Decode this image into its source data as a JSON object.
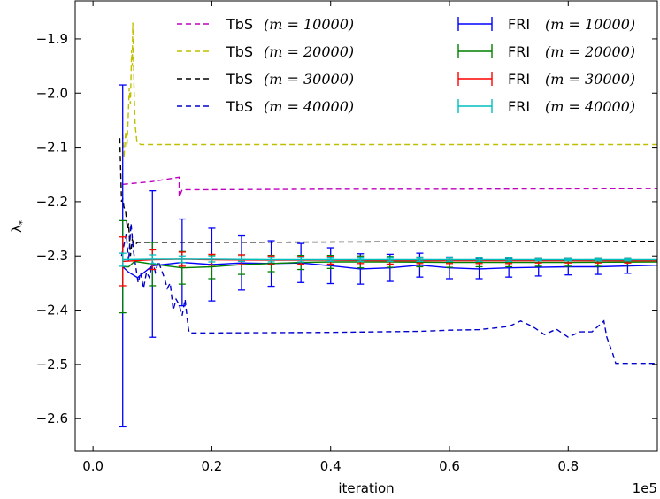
{
  "chart_data": {
    "type": "line",
    "xlabel": "iteration",
    "ylabel": "λ",
    "ylabel_sub": "*",
    "x_offset_text": "1e5",
    "xlim": [
      -0.03,
      0.95
    ],
    "ylim": [
      -2.66,
      -1.83
    ],
    "xticks": [
      0.0,
      0.2,
      0.4,
      0.6,
      0.8
    ],
    "xtick_labels": [
      "0.0",
      "0.2",
      "0.4",
      "0.6",
      "0.8"
    ],
    "yticks": [
      -2.6,
      -2.5,
      -2.4,
      -2.3,
      -2.2,
      -2.1,
      -2.0,
      -1.9
    ],
    "ytick_labels": [
      "−2.6",
      "−2.5",
      "−2.4",
      "−2.3",
      "−2.2",
      "−2.1",
      "−2.0",
      "−1.9"
    ],
    "grid": false,
    "legend_position": "top-right",
    "series": [
      {
        "name": "TbS (m = 10000)",
        "label_text": "TbS",
        "label_math": "(m = 10000)",
        "style": "dashed",
        "color": "#bf00bf",
        "points": [
          [
            0.05,
            -2.168
          ],
          [
            0.1,
            -2.163
          ],
          [
            0.145,
            -2.155
          ],
          [
            0.145,
            -2.192
          ],
          [
            0.15,
            -2.178
          ],
          [
            0.2,
            -2.178
          ],
          [
            0.4,
            -2.177
          ],
          [
            0.6,
            -2.177
          ],
          [
            0.95,
            -2.176
          ]
        ]
      },
      {
        "name": "TbS (m = 20000)",
        "label_text": "TbS",
        "label_math": "(m = 20000)",
        "style": "dashed",
        "color": "#bfbf00",
        "points": [
          [
            0.05,
            -2.075
          ],
          [
            0.052,
            -2.12
          ],
          [
            0.055,
            -2.07
          ],
          [
            0.057,
            -2.1
          ],
          [
            0.059,
            -2.05
          ],
          [
            0.061,
            -1.99
          ],
          [
            0.063,
            -2.02
          ],
          [
            0.065,
            -1.92
          ],
          [
            0.066,
            -1.95
          ],
          [
            0.067,
            -1.87
          ],
          [
            0.069,
            -1.99
          ],
          [
            0.071,
            -2.06
          ],
          [
            0.074,
            -2.09
          ],
          [
            0.08,
            -2.095
          ],
          [
            0.2,
            -2.095
          ],
          [
            0.5,
            -2.095
          ],
          [
            0.95,
            -2.095
          ]
        ]
      },
      {
        "name": "TbS (m = 30000)",
        "label_text": "TbS",
        "label_math": "(m = 30000)",
        "style": "dashed",
        "color": "#000000",
        "points": [
          [
            0.045,
            -2.083
          ],
          [
            0.048,
            -2.2
          ],
          [
            0.05,
            -2.195
          ],
          [
            0.052,
            -2.21
          ],
          [
            0.055,
            -2.22
          ],
          [
            0.058,
            -2.25
          ],
          [
            0.06,
            -2.24
          ],
          [
            0.063,
            -2.3
          ],
          [
            0.066,
            -2.27
          ],
          [
            0.07,
            -2.28
          ],
          [
            0.075,
            -2.275
          ],
          [
            0.1,
            -2.275
          ],
          [
            0.2,
            -2.275
          ],
          [
            0.5,
            -2.274
          ],
          [
            0.95,
            -2.273
          ]
        ]
      },
      {
        "name": "TbS (m = 40000)",
        "label_text": "TbS",
        "label_math": "(m = 40000)",
        "style": "dashed",
        "color": "#0000cc",
        "points": [
          [
            0.048,
            -2.3
          ],
          [
            0.052,
            -2.28
          ],
          [
            0.056,
            -2.26
          ],
          [
            0.06,
            -2.31
          ],
          [
            0.064,
            -2.24
          ],
          [
            0.068,
            -2.29
          ],
          [
            0.072,
            -2.32
          ],
          [
            0.076,
            -2.35
          ],
          [
            0.08,
            -2.33
          ],
          [
            0.085,
            -2.36
          ],
          [
            0.09,
            -2.33
          ],
          [
            0.095,
            -2.34
          ],
          [
            0.1,
            -2.31
          ],
          [
            0.105,
            -2.33
          ],
          [
            0.11,
            -2.31
          ],
          [
            0.12,
            -2.34
          ],
          [
            0.125,
            -2.36
          ],
          [
            0.13,
            -2.35
          ],
          [
            0.135,
            -2.4
          ],
          [
            0.14,
            -2.38
          ],
          [
            0.145,
            -2.39
          ],
          [
            0.15,
            -2.41
          ],
          [
            0.155,
            -2.38
          ],
          [
            0.16,
            -2.43
          ],
          [
            0.162,
            -2.442
          ],
          [
            0.2,
            -2.442
          ],
          [
            0.4,
            -2.441
          ],
          [
            0.55,
            -2.439
          ],
          [
            0.6,
            -2.437
          ],
          [
            0.65,
            -2.436
          ],
          [
            0.7,
            -2.43
          ],
          [
            0.72,
            -2.42
          ],
          [
            0.74,
            -2.43
          ],
          [
            0.76,
            -2.445
          ],
          [
            0.78,
            -2.435
          ],
          [
            0.8,
            -2.45
          ],
          [
            0.82,
            -2.44
          ],
          [
            0.84,
            -2.44
          ],
          [
            0.86,
            -2.42
          ],
          [
            0.865,
            -2.45
          ],
          [
            0.875,
            -2.48
          ],
          [
            0.88,
            -2.498
          ],
          [
            0.95,
            -2.498
          ]
        ]
      },
      {
        "name": "FRI (m = 10000)",
        "label_text": "FRI",
        "label_math": "(m = 10000)",
        "style": "solid",
        "color": "#0000ff",
        "points": [
          [
            0.05,
            -2.32
          ],
          [
            0.06,
            -2.33
          ],
          [
            0.075,
            -2.34
          ],
          [
            0.1,
            -2.318
          ],
          [
            0.15,
            -2.312
          ],
          [
            0.2,
            -2.316
          ],
          [
            0.25,
            -2.313
          ],
          [
            0.3,
            -2.314
          ],
          [
            0.35,
            -2.313
          ],
          [
            0.4,
            -2.318
          ],
          [
            0.45,
            -2.324
          ],
          [
            0.5,
            -2.322
          ],
          [
            0.55,
            -2.317
          ],
          [
            0.6,
            -2.322
          ],
          [
            0.65,
            -2.324
          ],
          [
            0.7,
            -2.322
          ],
          [
            0.75,
            -2.321
          ],
          [
            0.8,
            -2.32
          ],
          [
            0.85,
            -2.32
          ],
          [
            0.95,
            -2.317
          ]
        ],
        "errorbars": [
          {
            "x": 0.05,
            "y": -2.3,
            "err": 0.315
          },
          {
            "x": 0.1,
            "y": -2.315,
            "err": 0.135
          },
          {
            "x": 0.15,
            "y": -2.312,
            "err": 0.08
          },
          {
            "x": 0.2,
            "y": -2.316,
            "err": 0.067
          },
          {
            "x": 0.25,
            "y": -2.313,
            "err": 0.05
          },
          {
            "x": 0.3,
            "y": -2.314,
            "err": 0.042
          },
          {
            "x": 0.35,
            "y": -2.313,
            "err": 0.036
          },
          {
            "x": 0.4,
            "y": -2.318,
            "err": 0.033
          },
          {
            "x": 0.45,
            "y": -2.324,
            "err": 0.028
          },
          {
            "x": 0.5,
            "y": -2.322,
            "err": 0.025
          },
          {
            "x": 0.55,
            "y": -2.317,
            "err": 0.022
          },
          {
            "x": 0.6,
            "y": -2.322,
            "err": 0.02
          },
          {
            "x": 0.65,
            "y": -2.324,
            "err": 0.018
          },
          {
            "x": 0.7,
            "y": -2.322,
            "err": 0.017
          },
          {
            "x": 0.75,
            "y": -2.321,
            "err": 0.016
          },
          {
            "x": 0.8,
            "y": -2.32,
            "err": 0.015
          },
          {
            "x": 0.85,
            "y": -2.32,
            "err": 0.014
          },
          {
            "x": 0.9,
            "y": -2.319,
            "err": 0.013
          }
        ]
      },
      {
        "name": "FRI (m = 20000)",
        "label_text": "FRI",
        "label_math": "(m = 20000)",
        "style": "solid",
        "color": "#008000",
        "points": [
          [
            0.05,
            -2.32
          ],
          [
            0.06,
            -2.32
          ],
          [
            0.07,
            -2.31
          ],
          [
            0.1,
            -2.315
          ],
          [
            0.15,
            -2.322
          ],
          [
            0.2,
            -2.32
          ],
          [
            0.25,
            -2.316
          ],
          [
            0.3,
            -2.314
          ],
          [
            0.35,
            -2.312
          ],
          [
            0.4,
            -2.311
          ],
          [
            0.5,
            -2.311
          ],
          [
            0.6,
            -2.312
          ],
          [
            0.7,
            -2.312
          ],
          [
            0.8,
            -2.312
          ],
          [
            0.95,
            -2.311
          ]
        ],
        "errorbars": [
          {
            "x": 0.05,
            "y": -2.32,
            "err": 0.085
          },
          {
            "x": 0.1,
            "y": -2.315,
            "err": 0.04
          },
          {
            "x": 0.15,
            "y": -2.322,
            "err": 0.03
          },
          {
            "x": 0.2,
            "y": -2.32,
            "err": 0.022
          },
          {
            "x": 0.25,
            "y": -2.316,
            "err": 0.018
          },
          {
            "x": 0.3,
            "y": -2.314,
            "err": 0.015
          },
          {
            "x": 0.35,
            "y": -2.312,
            "err": 0.013
          },
          {
            "x": 0.4,
            "y": -2.311,
            "err": 0.012
          },
          {
            "x": 0.45,
            "y": -2.311,
            "err": 0.011
          },
          {
            "x": 0.5,
            "y": -2.311,
            "err": 0.01
          },
          {
            "x": 0.55,
            "y": -2.311,
            "err": 0.009
          },
          {
            "x": 0.6,
            "y": -2.312,
            "err": 0.009
          },
          {
            "x": 0.65,
            "y": -2.312,
            "err": 0.008
          },
          {
            "x": 0.7,
            "y": -2.312,
            "err": 0.008
          },
          {
            "x": 0.75,
            "y": -2.312,
            "err": 0.007
          },
          {
            "x": 0.8,
            "y": -2.312,
            "err": 0.007
          },
          {
            "x": 0.85,
            "y": -2.312,
            "err": 0.007
          },
          {
            "x": 0.9,
            "y": -2.311,
            "err": 0.006
          }
        ]
      },
      {
        "name": "FRI (m = 30000)",
        "label_text": "FRI",
        "label_math": "(m = 30000)",
        "style": "solid",
        "color": "#ff0000",
        "points": [
          [
            0.05,
            -2.31
          ],
          [
            0.1,
            -2.307
          ],
          [
            0.15,
            -2.306
          ],
          [
            0.2,
            -2.307
          ],
          [
            0.3,
            -2.308
          ],
          [
            0.4,
            -2.308
          ],
          [
            0.5,
            -2.309
          ],
          [
            0.6,
            -2.309
          ],
          [
            0.7,
            -2.309
          ],
          [
            0.8,
            -2.309
          ],
          [
            0.95,
            -2.309
          ]
        ],
        "errorbars": [
          {
            "x": 0.05,
            "y": -2.31,
            "err": 0.045
          },
          {
            "x": 0.1,
            "y": -2.307,
            "err": 0.018
          },
          {
            "x": 0.15,
            "y": -2.306,
            "err": 0.013
          },
          {
            "x": 0.2,
            "y": -2.307,
            "err": 0.01
          },
          {
            "x": 0.25,
            "y": -2.307,
            "err": 0.009
          },
          {
            "x": 0.3,
            "y": -2.308,
            "err": 0.008
          },
          {
            "x": 0.35,
            "y": -2.308,
            "err": 0.007
          },
          {
            "x": 0.4,
            "y": -2.308,
            "err": 0.007
          },
          {
            "x": 0.45,
            "y": -2.308,
            "err": 0.006
          },
          {
            "x": 0.5,
            "y": -2.309,
            "err": 0.006
          },
          {
            "x": 0.55,
            "y": -2.309,
            "err": 0.005
          },
          {
            "x": 0.6,
            "y": -2.309,
            "err": 0.005
          },
          {
            "x": 0.65,
            "y": -2.309,
            "err": 0.005
          },
          {
            "x": 0.7,
            "y": -2.309,
            "err": 0.005
          },
          {
            "x": 0.75,
            "y": -2.309,
            "err": 0.004
          },
          {
            "x": 0.8,
            "y": -2.309,
            "err": 0.004
          },
          {
            "x": 0.85,
            "y": -2.309,
            "err": 0.004
          },
          {
            "x": 0.9,
            "y": -2.309,
            "err": 0.004
          }
        ]
      },
      {
        "name": "FRI (m = 40000)",
        "label_text": "FRI",
        "label_math": "(m = 40000)",
        "style": "solid",
        "color": "#00bfbf",
        "points": [
          [
            0.05,
            -2.307
          ],
          [
            0.1,
            -2.306
          ],
          [
            0.2,
            -2.306
          ],
          [
            0.3,
            -2.307
          ],
          [
            0.4,
            -2.307
          ],
          [
            0.5,
            -2.307
          ],
          [
            0.6,
            -2.307
          ],
          [
            0.7,
            -2.307
          ],
          [
            0.8,
            -2.307
          ],
          [
            0.95,
            -2.307
          ]
        ],
        "errorbars": [
          {
            "x": 0.05,
            "y": -2.307,
            "err": 0.012
          },
          {
            "x": 0.1,
            "y": -2.306,
            "err": 0.008
          },
          {
            "x": 0.15,
            "y": -2.306,
            "err": 0.006
          },
          {
            "x": 0.2,
            "y": -2.306,
            "err": 0.005
          },
          {
            "x": 0.25,
            "y": -2.306,
            "err": 0.004
          },
          {
            "x": 0.3,
            "y": -2.307,
            "err": 0.004
          },
          {
            "x": 0.35,
            "y": -2.307,
            "err": 0.004
          },
          {
            "x": 0.4,
            "y": -2.307,
            "err": 0.003
          },
          {
            "x": 0.45,
            "y": -2.307,
            "err": 0.003
          },
          {
            "x": 0.5,
            "y": -2.307,
            "err": 0.003
          },
          {
            "x": 0.55,
            "y": -2.307,
            "err": 0.003
          },
          {
            "x": 0.6,
            "y": -2.307,
            "err": 0.003
          },
          {
            "x": 0.65,
            "y": -2.307,
            "err": 0.003
          },
          {
            "x": 0.7,
            "y": -2.307,
            "err": 0.003
          },
          {
            "x": 0.75,
            "y": -2.307,
            "err": 0.002
          },
          {
            "x": 0.8,
            "y": -2.307,
            "err": 0.002
          },
          {
            "x": 0.85,
            "y": -2.307,
            "err": 0.002
          },
          {
            "x": 0.9,
            "y": -2.307,
            "err": 0.002
          }
        ]
      }
    ]
  }
}
